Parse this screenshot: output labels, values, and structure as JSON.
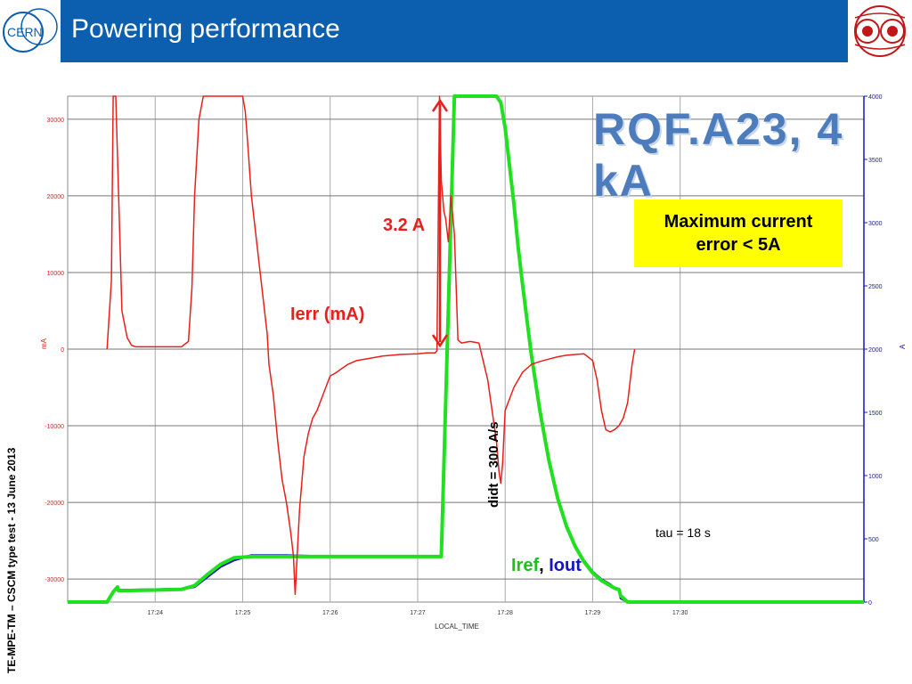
{
  "header": {
    "title": "Powering performance",
    "left_logo_text": "CERN"
  },
  "side_label": "TE-MPE-TM – CSCM type test - 13 June 2013",
  "annotations": {
    "rqf_title": "RQF.A23, 4 kA",
    "box_text_line1": "Maximum current",
    "box_text_line2": "error < 5A",
    "delta_label": "3.2 A",
    "ierr_label": "Ierr (mA)",
    "didt_label": "didt = 300 A/s",
    "tau_label": "tau = 18 s",
    "iref_label": "Iref",
    "sep_label": ",",
    "iout_label": "Iout"
  },
  "colors": {
    "header": "#0b5fae",
    "ierr": "#e8201c",
    "iref": "#20e020",
    "iout": "#1515c0",
    "box": "#ffff00",
    "arrow": "#e8201c"
  },
  "chart_data": {
    "type": "line",
    "xlabel": "LOCAL_TIME",
    "ylabel_left": "mA",
    "ylabel_right": "A",
    "xlim": [
      0,
      9.1
    ],
    "x_ticks": [
      {
        "x": 1,
        "label": "17:24"
      },
      {
        "x": 2,
        "label": "17:25"
      },
      {
        "x": 3,
        "label": "17:26"
      },
      {
        "x": 4,
        "label": "17:27"
      },
      {
        "x": 5,
        "label": "17:28"
      },
      {
        "x": 6,
        "label": "17:29"
      },
      {
        "x": 7,
        "label": "17:30"
      }
    ],
    "ylim_left": [
      -33000,
      33000
    ],
    "left_ticks": [
      30000,
      20000,
      10000,
      0,
      -10000,
      -20000,
      -30000
    ],
    "left_tick_labels": [
      "30000",
      "20000",
      "10000",
      "0",
      "-10000",
      "-20000",
      "-30000"
    ],
    "ylim_right": [
      0,
      4000
    ],
    "right_ticks": [
      0,
      500,
      1000,
      1500,
      2000,
      2500,
      3000,
      3500,
      4000
    ],
    "right_tick_labels": [
      "0",
      "500",
      "1000",
      "1500",
      "2000",
      "2500",
      "3000",
      "3500",
      "4000"
    ],
    "series": [
      {
        "name": "Ierr (mA)",
        "axis": "left",
        "x": [
          0.45,
          0.5,
          0.52,
          0.55,
          0.62,
          0.68,
          0.73,
          0.78,
          0.8,
          0.85,
          0.9,
          0.95,
          1.0,
          1.05,
          1.1,
          1.2,
          1.3,
          1.38,
          1.42,
          1.45,
          1.5,
          1.55,
          1.6,
          1.63,
          1.65,
          1.7,
          1.8,
          1.9,
          2.0,
          2.03,
          2.05,
          2.1,
          2.2,
          2.28,
          2.3,
          2.35,
          2.4,
          2.45,
          2.5,
          2.55,
          2.58,
          2.6,
          2.65,
          2.7,
          2.75,
          2.8,
          2.85,
          2.9,
          2.95,
          3.0,
          3.05,
          3.1,
          3.2,
          3.3,
          3.4,
          3.5,
          3.6,
          3.7,
          3.8,
          3.9,
          4.0,
          4.1,
          4.15,
          4.2,
          4.22,
          4.25,
          4.27,
          4.3,
          4.32,
          4.35,
          4.38,
          4.42,
          4.46,
          4.5,
          4.55,
          4.6,
          4.65,
          4.7,
          4.8,
          4.9,
          4.93,
          4.95,
          4.97,
          5.0,
          5.1,
          5.2,
          5.3,
          5.4,
          5.5,
          5.6,
          5.7,
          5.8,
          5.9,
          6.0,
          6.05,
          6.1,
          6.15,
          6.2,
          6.25,
          6.3,
          6.35,
          6.4,
          6.45,
          6.48
        ],
        "values": [
          0,
          9000,
          33000,
          33000,
          5000,
          1500,
          500,
          300,
          300,
          300,
          300,
          300,
          300,
          300,
          300,
          300,
          300,
          1000,
          8000,
          20000,
          30000,
          33000,
          33000,
          33000,
          33000,
          33000,
          33000,
          33000,
          33000,
          31000,
          28000,
          20000,
          10000,
          2000,
          -2000,
          -6000,
          -12000,
          -17000,
          -20000,
          -24000,
          -27000,
          -32000,
          -21000,
          -14000,
          -11000,
          -9000,
          -8000,
          -6500,
          -5000,
          -3500,
          -3200,
          -2800,
          -2000,
          -1500,
          -1300,
          -1100,
          -900,
          -800,
          -700,
          -650,
          -600,
          -500,
          -500,
          -500,
          -200,
          33000,
          22000,
          18000,
          17000,
          14000,
          20000,
          15000,
          1200,
          800,
          900,
          1000,
          900,
          800,
          -4000,
          -12000,
          -16000,
          -17500,
          -15000,
          -8000,
          -5000,
          -3000,
          -2000,
          -1600,
          -1300,
          -1000,
          -800,
          -700,
          -600,
          -1500,
          -4000,
          -8000,
          -10500,
          -10800,
          -10500,
          -10000,
          -9000,
          -7000,
          -2000,
          0
        ]
      },
      {
        "name": "Iref",
        "axis": "right",
        "x": [
          0,
          0.45,
          0.52,
          0.57,
          0.58,
          1.0,
          1.3,
          1.45,
          1.6,
          1.75,
          1.9,
          2.1,
          2.5,
          3.0,
          3.5,
          3.9,
          4.2,
          4.27,
          4.42,
          4.6,
          4.8,
          4.9,
          4.95,
          5.0,
          5.05,
          5.1,
          5.15,
          5.2,
          5.3,
          5.4,
          5.5,
          5.6,
          5.7,
          5.8,
          5.9,
          6.0,
          6.1,
          6.2,
          6.25,
          6.3,
          6.32,
          6.4,
          6.6,
          7.0,
          8.0,
          9.1
        ],
        "values": [
          0,
          0,
          80,
          120,
          90,
          95,
          100,
          130,
          220,
          300,
          350,
          360,
          360,
          360,
          360,
          360,
          360,
          360,
          4000,
          4000,
          4000,
          4000,
          3950,
          3750,
          3450,
          3150,
          2800,
          2500,
          1950,
          1500,
          1120,
          820,
          600,
          440,
          320,
          230,
          170,
          130,
          110,
          100,
          50,
          0,
          0,
          0,
          0,
          0
        ]
      },
      {
        "name": "Iout",
        "axis": "right",
        "x": [
          0,
          0.45,
          0.5,
          0.55,
          0.6,
          1.0,
          1.3,
          1.45,
          1.6,
          1.75,
          1.9,
          2.1,
          2.5,
          3.0,
          3.5,
          3.9,
          4.2,
          4.27,
          4.42,
          4.6,
          4.8,
          4.9,
          4.95,
          5.0,
          5.05,
          5.1,
          5.15,
          5.2,
          5.3,
          5.4,
          5.5,
          5.6,
          5.7,
          5.8,
          5.9,
          6.0,
          6.1,
          6.2,
          6.25,
          6.3,
          6.32,
          6.4,
          6.6,
          7.0,
          8.0,
          9.1
        ],
        "values": [
          0,
          0,
          60,
          100,
          95,
          100,
          105,
          120,
          200,
          280,
          330,
          370,
          370,
          360,
          360,
          360,
          360,
          360,
          4000,
          4000,
          4000,
          4000,
          3960,
          3760,
          3460,
          3160,
          2810,
          2510,
          1960,
          1510,
          1130,
          830,
          610,
          450,
          330,
          240,
          180,
          140,
          110,
          100,
          30,
          0,
          0,
          0,
          0,
          0
        ]
      }
    ]
  }
}
